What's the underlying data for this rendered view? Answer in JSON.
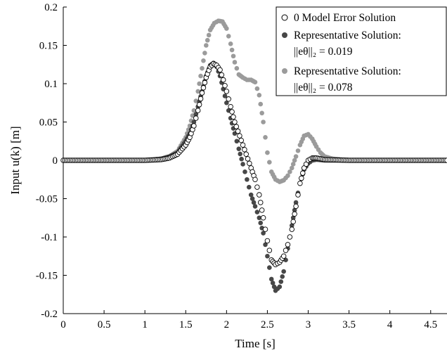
{
  "chart_data": {
    "type": "scatter",
    "xlabel": "Time [s]",
    "ylabel": "Input u(k) [m]",
    "xlim": [
      0,
      4.7
    ],
    "ylim": [
      -0.2,
      0.2
    ],
    "xticks": [
      "0",
      "0.5",
      "1",
      "1.5",
      "2",
      "2.5",
      "3",
      "3.5",
      "4",
      "4.5"
    ],
    "yticks": [
      "0.2",
      "0.15",
      "0.1",
      "0.05",
      "0",
      "-0.05",
      "-0.1",
      "-0.15",
      "-0.2"
    ],
    "grid": false,
    "legend_position": "top-right",
    "series": [
      {
        "name": "0 Model Error Solution",
        "marker": "open-circle",
        "color": "#000000",
        "x": [
          0,
          0.5,
          1.0,
          1.2,
          1.3,
          1.4,
          1.5,
          1.55,
          1.6,
          1.65,
          1.7,
          1.75,
          1.8,
          1.84,
          1.88,
          1.92,
          1.96,
          2.0,
          2.05,
          2.1,
          2.2,
          2.3,
          2.35,
          2.4,
          2.45,
          2.5,
          2.55,
          2.6,
          2.65,
          2.7,
          2.75,
          2.8,
          2.85,
          2.9,
          2.95,
          3.0,
          3.05,
          3.1,
          3.2,
          3.5,
          4.0,
          4.7
        ],
        "y": [
          0,
          0,
          0,
          0.001,
          0.003,
          0.008,
          0.02,
          0.03,
          0.045,
          0.065,
          0.088,
          0.108,
          0.122,
          0.126,
          0.124,
          0.118,
          0.105,
          0.09,
          0.07,
          0.05,
          0.02,
          -0.01,
          -0.025,
          -0.045,
          -0.075,
          -0.105,
          -0.13,
          -0.136,
          -0.133,
          -0.125,
          -0.11,
          -0.09,
          -0.06,
          -0.03,
          -0.01,
          0.0,
          0.003,
          0.003,
          0.001,
          0,
          0,
          0
        ]
      },
      {
        "name": "Representative Solution: ||eθ||₂ = 0.019",
        "marker": "filled-circle",
        "color": "#474747",
        "x": [
          0,
          0.5,
          1.0,
          1.2,
          1.3,
          1.4,
          1.5,
          1.55,
          1.6,
          1.65,
          1.7,
          1.75,
          1.8,
          1.84,
          1.88,
          1.92,
          1.96,
          2.0,
          2.05,
          2.1,
          2.15,
          2.2,
          2.25,
          2.3,
          2.35,
          2.4,
          2.45,
          2.5,
          2.55,
          2.6,
          2.65,
          2.7,
          2.75,
          2.8,
          2.85,
          2.9,
          2.95,
          3.0,
          3.05,
          3.1,
          3.2,
          3.5,
          4.0,
          4.7
        ],
        "y": [
          0,
          0,
          0,
          0.002,
          0.005,
          0.01,
          0.025,
          0.035,
          0.05,
          0.07,
          0.09,
          0.11,
          0.124,
          0.127,
          0.122,
          0.11,
          0.093,
          0.075,
          0.055,
          0.035,
          0.015,
          -0.005,
          -0.025,
          -0.045,
          -0.06,
          -0.075,
          -0.095,
          -0.125,
          -0.155,
          -0.17,
          -0.165,
          -0.145,
          -0.115,
          -0.085,
          -0.055,
          -0.03,
          -0.012,
          -0.004,
          0.0,
          0.001,
          0.0,
          0,
          0,
          0
        ]
      },
      {
        "name": "Representative Solution: ||eθ||₂ = 0.078",
        "marker": "filled-circle",
        "color": "#9b9b9b",
        "x": [
          0,
          0.5,
          1.0,
          1.2,
          1.3,
          1.4,
          1.5,
          1.55,
          1.6,
          1.65,
          1.7,
          1.75,
          1.8,
          1.85,
          1.9,
          1.95,
          2.0,
          2.05,
          2.1,
          2.15,
          2.2,
          2.25,
          2.3,
          2.35,
          2.4,
          2.45,
          2.5,
          2.55,
          2.6,
          2.65,
          2.7,
          2.75,
          2.8,
          2.85,
          2.9,
          2.95,
          3.0,
          3.05,
          3.1,
          3.15,
          3.2,
          3.3,
          3.5,
          4.0,
          4.7
        ],
        "y": [
          0,
          0,
          0,
          0.002,
          0.005,
          0.012,
          0.03,
          0.045,
          0.065,
          0.09,
          0.12,
          0.15,
          0.17,
          0.179,
          0.182,
          0.181,
          0.172,
          0.152,
          0.128,
          0.112,
          0.108,
          0.105,
          0.105,
          0.102,
          0.085,
          0.05,
          0.01,
          -0.015,
          -0.025,
          -0.028,
          -0.026,
          -0.02,
          -0.01,
          0.005,
          0.02,
          0.032,
          0.034,
          0.028,
          0.018,
          0.01,
          0.005,
          0.002,
          0,
          0,
          0
        ]
      }
    ]
  },
  "legend": {
    "entry0": "0 Model Error Solution",
    "entry1_line1": "Representative Solution:",
    "entry1_line2": "||eθ||₂ = 0.019",
    "entry2_line1": "Representative Solution:",
    "entry2_line2": "||eθ||₂ = 0.078"
  }
}
